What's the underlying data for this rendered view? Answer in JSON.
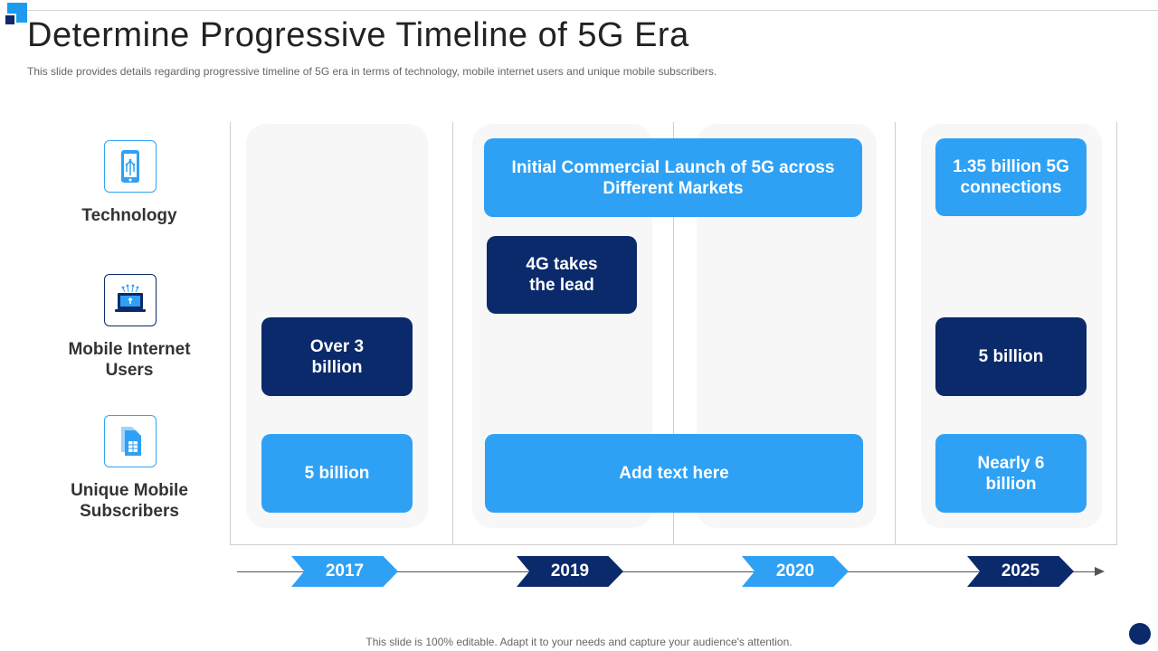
{
  "slide": {
    "title": "Determine Progressive Timeline of 5G Era",
    "subtitle": "This slide provides details regarding progressive timeline of 5G era in terms of technology, mobile internet users and unique mobile subscribers.",
    "footer": "This slide is 100% editable. Adapt it to your needs and capture your audience's attention."
  },
  "categories": [
    {
      "label": "Technology",
      "icon": "smartphone-icon"
    },
    {
      "label": "Mobile Internet Users",
      "icon": "laptop-touch-icon"
    },
    {
      "label": "Unique Mobile Subscribers",
      "icon": "sim-card-icon"
    }
  ],
  "boxes": {
    "y2019_technology": "Initial Commercial Launch of 5G across Different Markets",
    "y2025_technology": "1.35 billion 5G connections",
    "y2019_lead": "4G takes the lead",
    "y2017_internet": "Over 3 billion",
    "y2025_internet": "5 billion",
    "y2017_subscribers": "5 billion",
    "y2019_subscribers": "Add text here",
    "y2025_subscribers": "Nearly 6 billion"
  },
  "timeline": {
    "years": [
      "2017",
      "2019",
      "2020",
      "2025"
    ]
  },
  "colors": {
    "light_blue": "#2ea1f5",
    "dark_blue": "#0b2a6b"
  }
}
